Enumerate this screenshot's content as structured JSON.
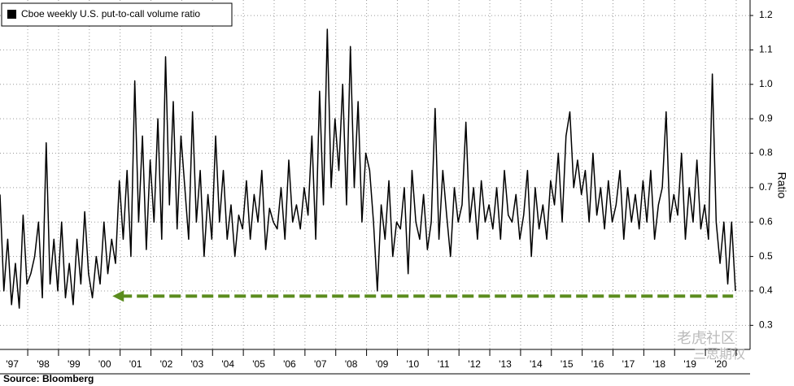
{
  "chart_data": {
    "type": "line",
    "legend_label": "Cboe weekly U.S. put-to-call volume ratio",
    "y_axis_label": "Ratio",
    "source": "Source: Bloomberg",
    "watermark": [
      "老虎社区",
      "三思期权"
    ],
    "xlim": [
      1997.1,
      2021.45
    ],
    "ylim": [
      0.23,
      1.245
    ],
    "xticks": [
      {
        "value": 1997.5,
        "label": "'97"
      },
      {
        "value": 1998.5,
        "label": "'98"
      },
      {
        "value": 1999.5,
        "label": "'99"
      },
      {
        "value": 2000.5,
        "label": "'00"
      },
      {
        "value": 2001.5,
        "label": "'01"
      },
      {
        "value": 2002.5,
        "label": "'02"
      },
      {
        "value": 2003.5,
        "label": "'03"
      },
      {
        "value": 2004.5,
        "label": "'04"
      },
      {
        "value": 2005.5,
        "label": "'05"
      },
      {
        "value": 2006.5,
        "label": "'06"
      },
      {
        "value": 2007.5,
        "label": "'07"
      },
      {
        "value": 2008.5,
        "label": "'08"
      },
      {
        "value": 2009.5,
        "label": "'09"
      },
      {
        "value": 2010.5,
        "label": "'10"
      },
      {
        "value": 2011.5,
        "label": "'11"
      },
      {
        "value": 2012.5,
        "label": "'12"
      },
      {
        "value": 2013.5,
        "label": "'13"
      },
      {
        "value": 2014.5,
        "label": "'14"
      },
      {
        "value": 2015.5,
        "label": "'15"
      },
      {
        "value": 2016.5,
        "label": "'16"
      },
      {
        "value": 2017.5,
        "label": "'17"
      },
      {
        "value": 2018.5,
        "label": "'18"
      },
      {
        "value": 2019.5,
        "label": "'19"
      },
      {
        "value": 2020.5,
        "label": "'20"
      }
    ],
    "yticks": [
      0.3,
      0.4,
      0.5,
      0.6,
      0.7,
      0.8,
      0.9,
      {
        "value": 1,
        "label": "1.0"
      },
      1.1,
      1.2
    ],
    "grid": true,
    "arrow": {
      "y": 0.385,
      "x": [
        2000.75,
        2020.9
      ],
      "color": "#5b8c1e"
    },
    "x": [
      1997.1,
      1997.225,
      1997.35,
      1997.475,
      1997.6,
      1997.725,
      1997.85,
      1997.975,
      1998.1,
      1998.225,
      1998.35,
      1998.475,
      1998.6,
      1998.725,
      1998.85,
      1998.975,
      1999.1,
      1999.225,
      1999.35,
      1999.475,
      1999.6,
      1999.725,
      1999.85,
      1999.975,
      2000.1,
      2000.225,
      2000.35,
      2000.475,
      2000.6,
      2000.725,
      2000.85,
      2000.975,
      2001.1,
      2001.225,
      2001.35,
      2001.475,
      2001.6,
      2001.725,
      2001.85,
      2001.975,
      2002.1,
      2002.225,
      2002.35,
      2002.475,
      2002.6,
      2002.725,
      2002.85,
      2002.975,
      2003.1,
      2003.225,
      2003.35,
      2003.475,
      2003.6,
      2003.725,
      2003.85,
      2003.975,
      2004.1,
      2004.225,
      2004.35,
      2004.475,
      2004.6,
      2004.725,
      2004.85,
      2004.975,
      2005.1,
      2005.225,
      2005.35,
      2005.475,
      2005.6,
      2005.725,
      2005.85,
      2005.975,
      2006.1,
      2006.225,
      2006.35,
      2006.475,
      2006.6,
      2006.725,
      2006.85,
      2006.975,
      2007.1,
      2007.225,
      2007.35,
      2007.475,
      2007.6,
      2007.725,
      2007.85,
      2007.975,
      2008.1,
      2008.225,
      2008.35,
      2008.475,
      2008.6,
      2008.725,
      2008.85,
      2008.975,
      2009.1,
      2009.225,
      2009.35,
      2009.475,
      2009.6,
      2009.725,
      2009.85,
      2009.975,
      2010.1,
      2010.225,
      2010.35,
      2010.475,
      2010.6,
      2010.725,
      2010.85,
      2010.975,
      2011.1,
      2011.225,
      2011.35,
      2011.475,
      2011.6,
      2011.725,
      2011.85,
      2011.975,
      2012.1,
      2012.225,
      2012.35,
      2012.475,
      2012.6,
      2012.725,
      2012.85,
      2012.975,
      2013.1,
      2013.225,
      2013.35,
      2013.475,
      2013.6,
      2013.725,
      2013.85,
      2013.975,
      2014.1,
      2014.225,
      2014.35,
      2014.475,
      2014.6,
      2014.725,
      2014.85,
      2014.975,
      2015.1,
      2015.225,
      2015.35,
      2015.475,
      2015.6,
      2015.725,
      2015.85,
      2015.975,
      2016.1,
      2016.225,
      2016.35,
      2016.475,
      2016.6,
      2016.725,
      2016.85,
      2016.975,
      2017.1,
      2017.225,
      2017.35,
      2017.475,
      2017.6,
      2017.725,
      2017.85,
      2017.975,
      2018.1,
      2018.225,
      2018.35,
      2018.475,
      2018.6,
      2018.725,
      2018.85,
      2018.975,
      2019.1,
      2019.225,
      2019.35,
      2019.475,
      2019.6,
      2019.725,
      2019.85,
      2019.975,
      2020.1,
      2020.225,
      2020.35,
      2020.475,
      2020.6,
      2020.725,
      2020.85,
      2020.975
    ],
    "series": [
      {
        "name": "Cboe weekly U.S. put-to-call volume ratio",
        "color": "#000000",
        "values": [
          0.68,
          0.4,
          0.55,
          0.36,
          0.48,
          0.35,
          0.62,
          0.42,
          0.45,
          0.5,
          0.6,
          0.38,
          0.83,
          0.42,
          0.55,
          0.4,
          0.6,
          0.38,
          0.48,
          0.36,
          0.55,
          0.42,
          0.63,
          0.45,
          0.38,
          0.5,
          0.42,
          0.6,
          0.45,
          0.55,
          0.48,
          0.72,
          0.55,
          0.75,
          0.5,
          1.01,
          0.6,
          0.85,
          0.52,
          0.78,
          0.6,
          0.9,
          0.55,
          1.08,
          0.65,
          0.95,
          0.58,
          0.85,
          0.7,
          0.55,
          0.92,
          0.6,
          0.75,
          0.5,
          0.68,
          0.55,
          0.85,
          0.6,
          0.75,
          0.55,
          0.65,
          0.5,
          0.62,
          0.58,
          0.72,
          0.55,
          0.68,
          0.6,
          0.75,
          0.52,
          0.64,
          0.6,
          0.58,
          0.7,
          0.55,
          0.78,
          0.6,
          0.65,
          0.58,
          0.7,
          0.62,
          0.85,
          0.55,
          0.98,
          0.65,
          1.16,
          0.7,
          0.9,
          0.75,
          1.0,
          0.65,
          1.11,
          0.7,
          0.95,
          0.6,
          0.8,
          0.75,
          0.6,
          0.4,
          0.65,
          0.55,
          0.72,
          0.5,
          0.6,
          0.58,
          0.7,
          0.45,
          0.75,
          0.6,
          0.55,
          0.68,
          0.52,
          0.6,
          0.93,
          0.55,
          0.75,
          0.62,
          0.5,
          0.7,
          0.6,
          0.65,
          0.89,
          0.6,
          0.7,
          0.55,
          0.72,
          0.6,
          0.65,
          0.58,
          0.7,
          0.55,
          0.75,
          0.62,
          0.6,
          0.68,
          0.55,
          0.62,
          0.75,
          0.5,
          0.7,
          0.58,
          0.65,
          0.55,
          0.72,
          0.65,
          0.8,
          0.6,
          0.85,
          0.92,
          0.7,
          0.78,
          0.68,
          0.75,
          0.6,
          0.8,
          0.62,
          0.7,
          0.58,
          0.72,
          0.6,
          0.65,
          0.75,
          0.55,
          0.7,
          0.6,
          0.68,
          0.58,
          0.72,
          0.6,
          0.75,
          0.55,
          0.65,
          0.7,
          0.92,
          0.6,
          0.68,
          0.62,
          0.8,
          0.55,
          0.7,
          0.6,
          0.78,
          0.58,
          0.65,
          0.55,
          1.03,
          0.6,
          0.48,
          0.6,
          0.42,
          0.6,
          0.4
        ]
      }
    ]
  }
}
